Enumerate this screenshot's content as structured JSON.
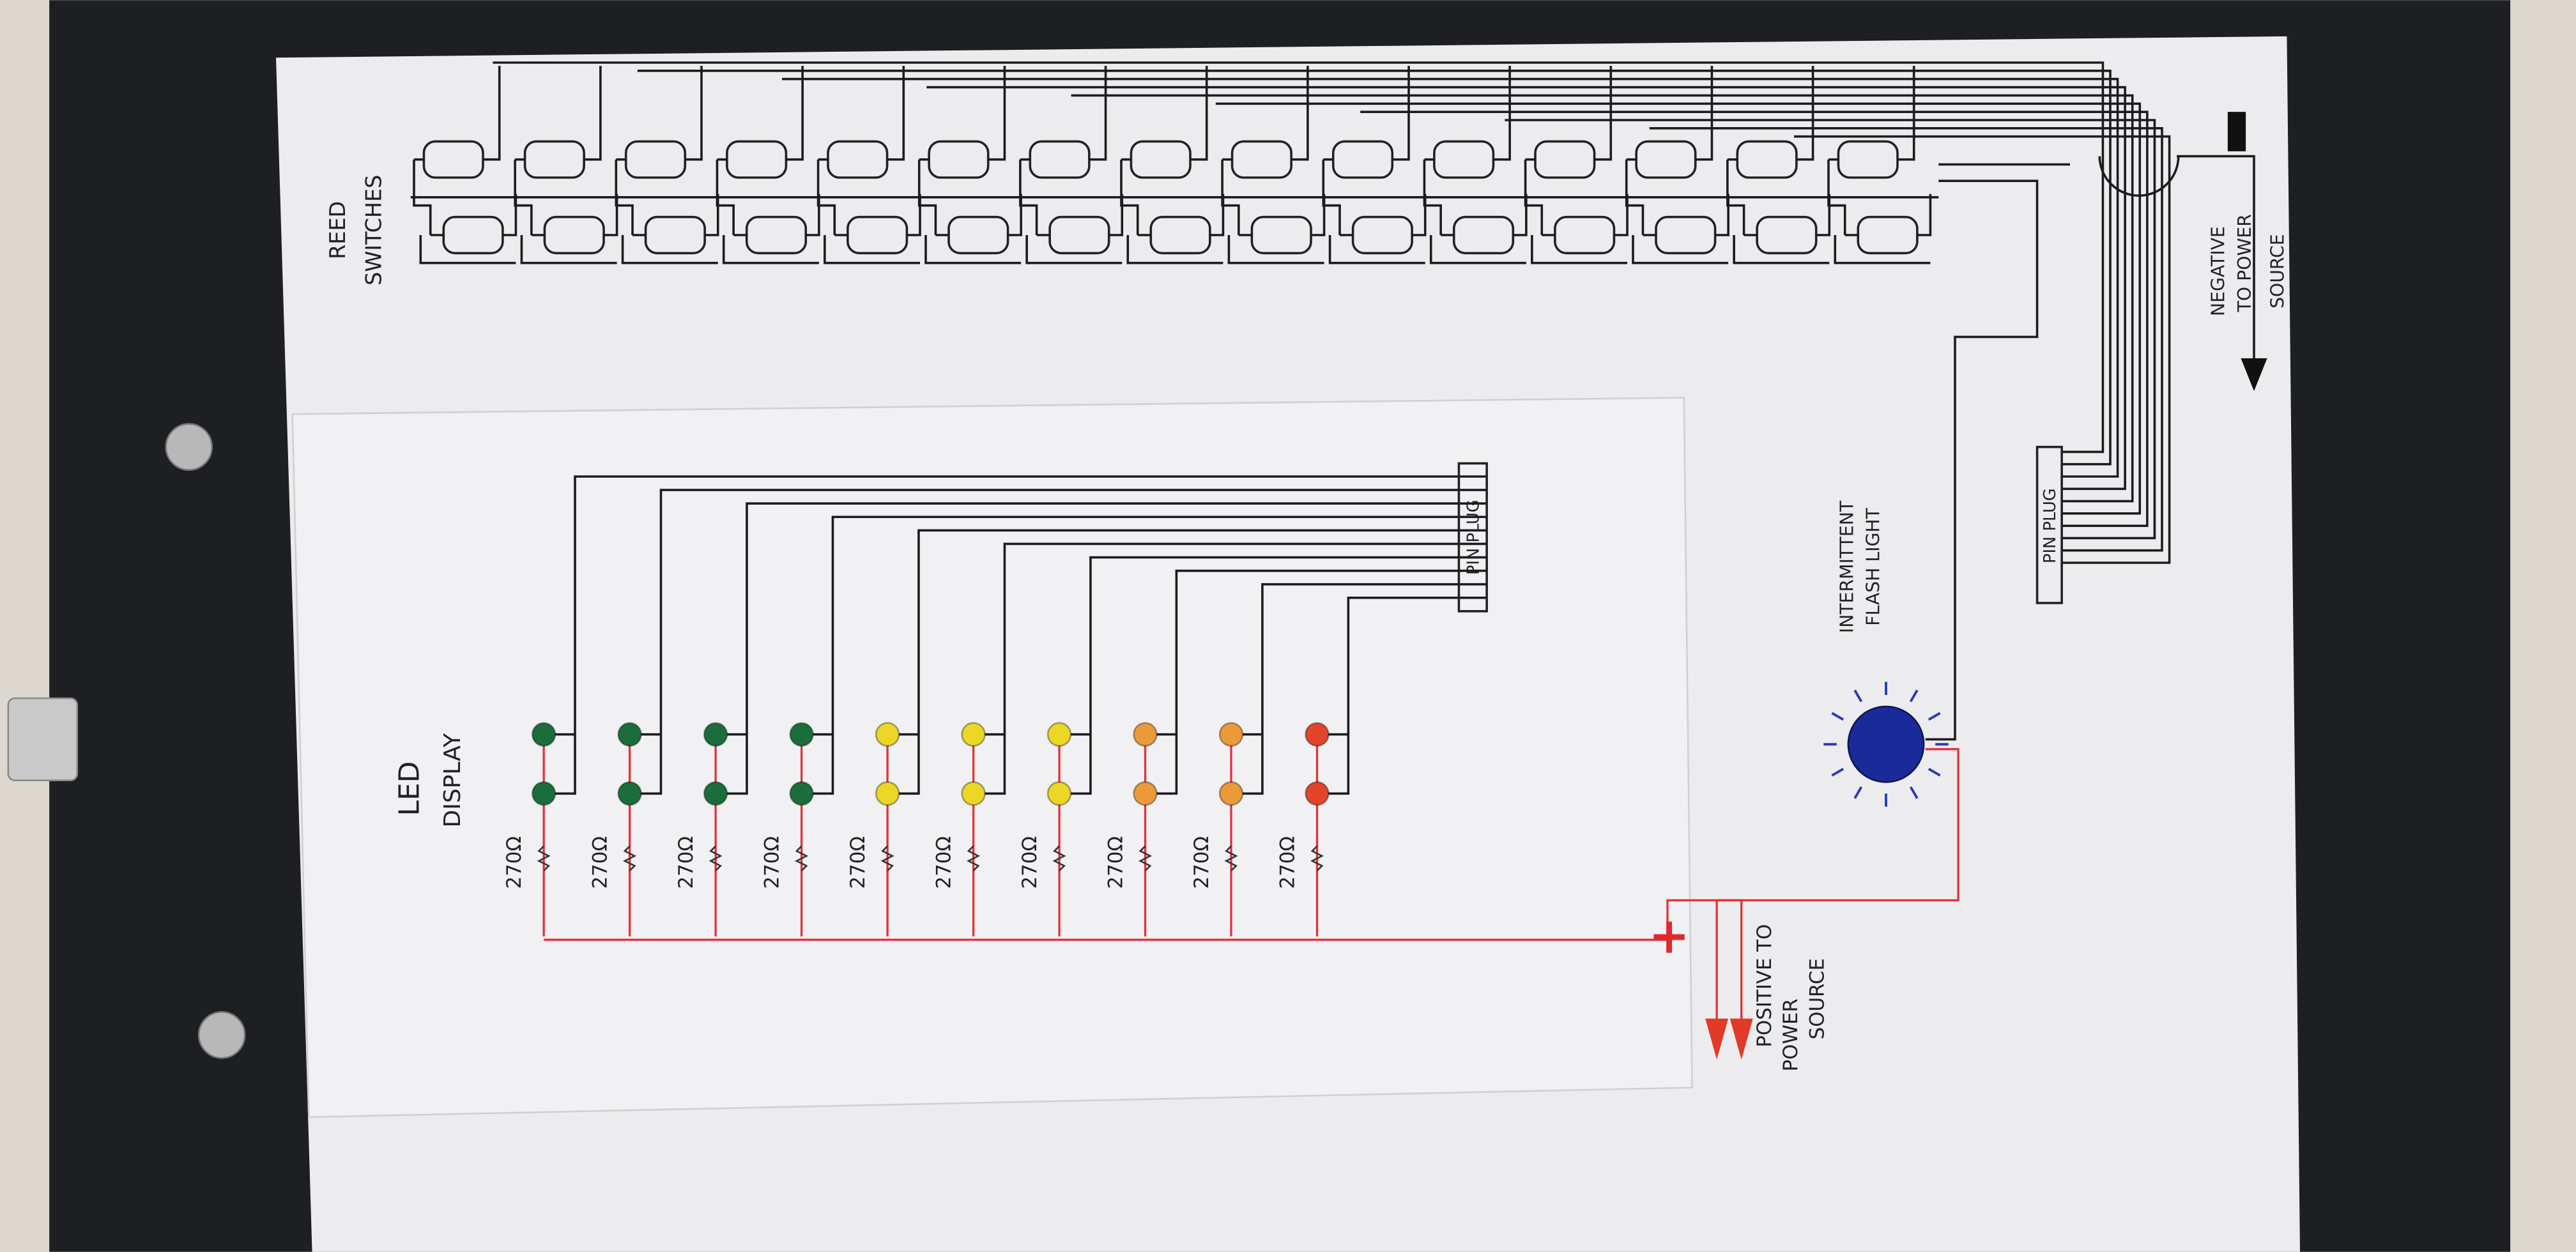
{
  "labels": {
    "reed_switches": [
      "REED",
      "SWITCHES"
    ],
    "led_display": [
      "LED",
      "DISPLAY"
    ],
    "pin_plug_led": "PIN PLUG",
    "pin_plug_switch": "PIN PLUG",
    "flash_light": [
      "INTERMITTENT",
      "FLASH LIGHT"
    ],
    "positive": [
      "POSITIVE TO",
      "POWER",
      "SOURCE"
    ],
    "negative": [
      "NEGATIVE",
      "TO POWER",
      "SOURCE"
    ],
    "plus_sign": "+"
  },
  "leds": [
    {
      "color": "#1b6e3c",
      "resistor": "270Ω"
    },
    {
      "color": "#1b6e3c",
      "resistor": "270Ω"
    },
    {
      "color": "#1b6e3c",
      "resistor": "270Ω"
    },
    {
      "color": "#1b6e3c",
      "resistor": "270Ω"
    },
    {
      "color": "#ecd626",
      "resistor": "270Ω"
    },
    {
      "color": "#ecd626",
      "resistor": "270Ω"
    },
    {
      "color": "#ecd626",
      "resistor": "270Ω"
    },
    {
      "color": "#eb9a3a",
      "resistor": "270Ω"
    },
    {
      "color": "#eb9a3a",
      "resistor": "270Ω"
    },
    {
      "color": "#e2452a",
      "resistor": "270Ω"
    }
  ],
  "reed_switch_count_per_row": 15,
  "colors": {
    "binder": "#1e1f22",
    "paper": "#eeeef0",
    "positive_wire": "#e0333a",
    "flash_light": "#1a2a9a"
  }
}
